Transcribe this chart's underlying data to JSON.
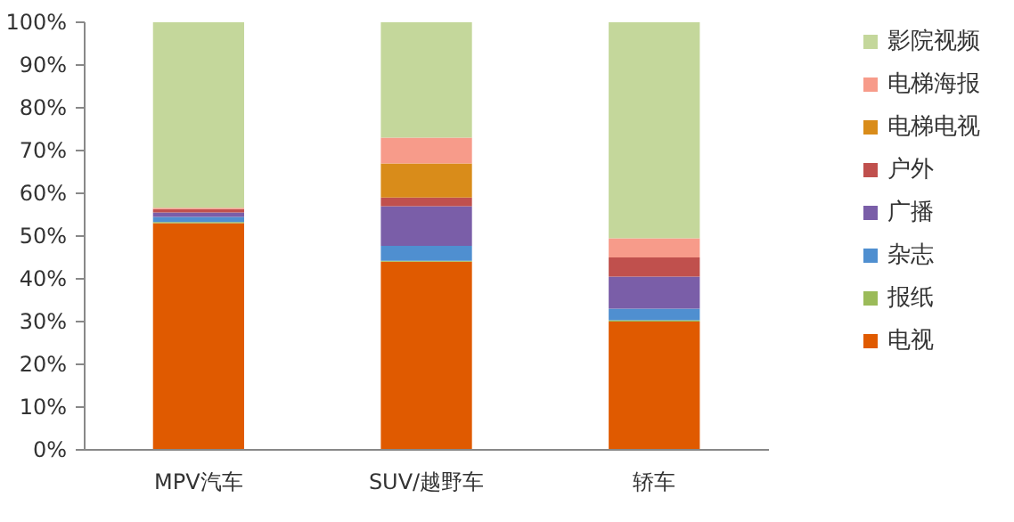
{
  "chart_data": {
    "type": "bar",
    "stacked": true,
    "categories": [
      "MPV汽车",
      "SUV/越野车",
      "轿车"
    ],
    "series": [
      {
        "name": "电视",
        "color": "#e05a00",
        "values": [
          53,
          44,
          30
        ]
      },
      {
        "name": "报纸",
        "color": "#9bbb59",
        "values": [
          0.3,
          0.2,
          0.3
        ]
      },
      {
        "name": "杂志",
        "color": "#4f8fd0",
        "values": [
          1.2,
          3.5,
          2.7
        ]
      },
      {
        "name": "广播",
        "color": "#7a5ea8",
        "values": [
          1.0,
          9.3,
          7.5
        ]
      },
      {
        "name": "户外",
        "color": "#c0504d",
        "values": [
          0.8,
          2,
          4.5
        ]
      },
      {
        "name": "电梯电视",
        "color": "#d98c1a",
        "values": [
          0,
          8,
          0
        ]
      },
      {
        "name": "电梯海报",
        "color": "#f79b8a",
        "values": [
          0.3,
          6,
          4.5
        ]
      },
      {
        "name": "影院视频",
        "color": "#c4d79b",
        "values": [
          43.4,
          27,
          50.5
        ]
      }
    ],
    "ylim": [
      0,
      100
    ],
    "yticks": [
      {
        "value": 0,
        "label": "0%"
      },
      {
        "value": 10,
        "label": "10%"
      },
      {
        "value": 20,
        "label": "20%"
      },
      {
        "value": 30,
        "label": "30%"
      },
      {
        "value": 40,
        "label": "40%"
      },
      {
        "value": 50,
        "label": "50%"
      },
      {
        "value": 60,
        "label": "60%"
      },
      {
        "value": 70,
        "label": "70%"
      },
      {
        "value": 80,
        "label": "80%"
      },
      {
        "value": 90,
        "label": "90%"
      },
      {
        "value": 100,
        "label": "100%"
      }
    ],
    "grid": false,
    "legend": "right"
  }
}
